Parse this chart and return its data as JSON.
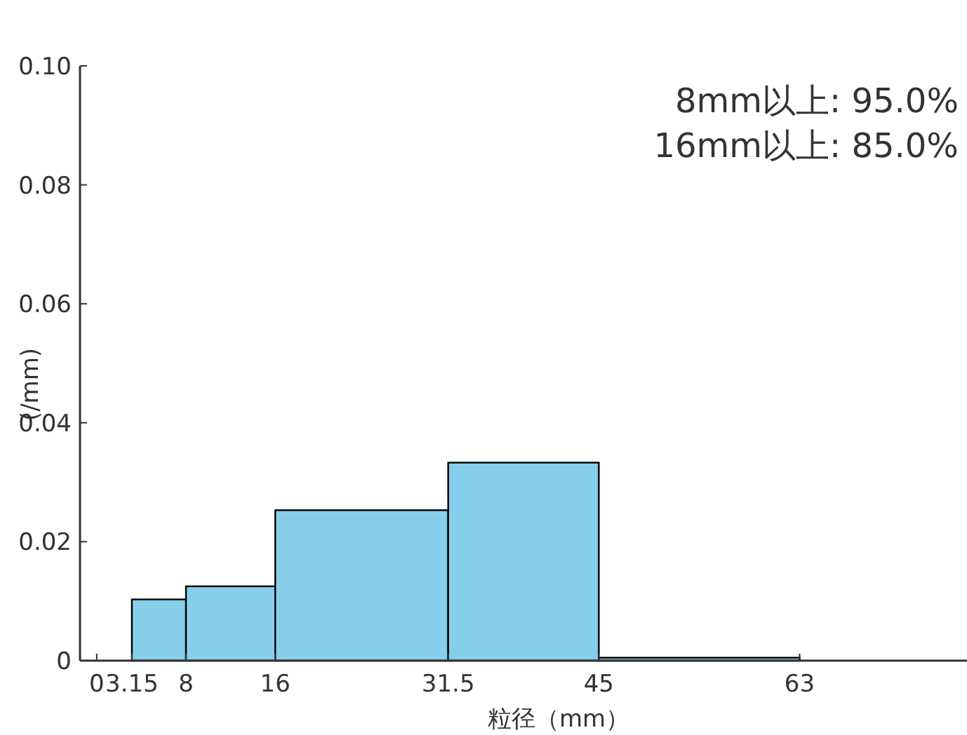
{
  "chart_data": {
    "type": "histogram",
    "bins": [
      3.15,
      8,
      16,
      31.5,
      45,
      63
    ],
    "values": [
      0.0103,
      0.0125,
      0.0253,
      0.0333,
      0.0005
    ],
    "color": "#87ceeb",
    "xlabel": "粒径（mm）",
    "ylabel": "(/mm)",
    "xlim": [
      -1.5,
      78
    ],
    "xticks": [
      0,
      3.15,
      8,
      16,
      31.5,
      45,
      63
    ],
    "ylim": [
      0,
      0.1
    ],
    "yticks": [
      0,
      0.02,
      0.04,
      0.06,
      0.08,
      {
        "value": 0.1,
        "label": "0.10"
      }
    ],
    "annotations": [
      "8mm以上: 95.0%",
      "16mm以上: 85.0%"
    ],
    "grid": false
  }
}
